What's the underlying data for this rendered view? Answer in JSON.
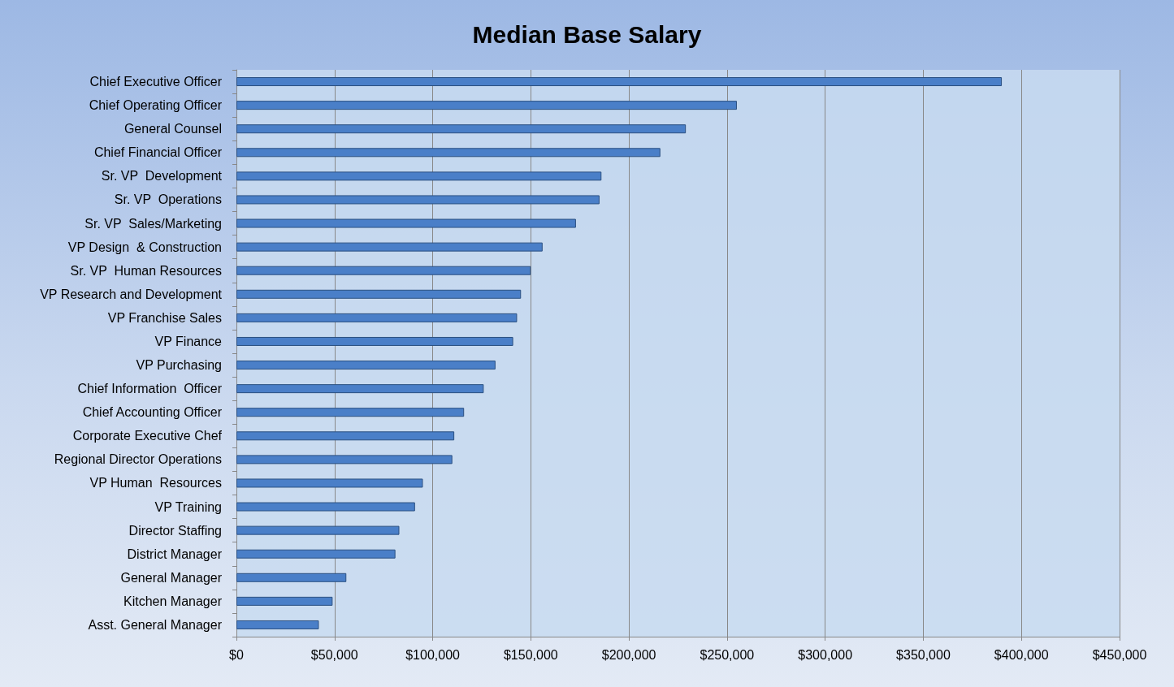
{
  "chart_data": {
    "type": "bar",
    "orientation": "horizontal",
    "title": "Median Base Salary",
    "categories": [
      "Chief Executive Officer",
      "Chief Operating Officer",
      "General Counsel",
      "Chief Financial Officer",
      "Sr. VP  Development",
      "Sr. VP  Operations",
      "Sr. VP  Sales/Marketing",
      "VP Design  & Construction",
      "Sr. VP  Human Resources",
      "VP Research and Development",
      "VP Franchise Sales",
      "VP Finance",
      "VP Purchasing",
      "Chief Information  Officer",
      "Chief Accounting Officer",
      "Corporate Executive Chef",
      "Regional Director Operations",
      "VP Human  Resources",
      "VP Training",
      "Director Staffing",
      "District Manager",
      "General Manager",
      "Kitchen Manager",
      "Asst. General Manager"
    ],
    "values": [
      390000,
      255000,
      229000,
      216000,
      186000,
      185000,
      173000,
      156000,
      150000,
      145000,
      143000,
      141000,
      132000,
      126000,
      116000,
      111000,
      110000,
      95000,
      91000,
      83000,
      81000,
      56000,
      49000,
      42000
    ],
    "color": "#4a7fc8",
    "xlim": [
      0,
      450000
    ],
    "xticks": [
      {
        "value": 0,
        "label": "$0"
      },
      {
        "value": 50000,
        "label": "$50,000"
      },
      {
        "value": 100000,
        "label": "$100,000"
      },
      {
        "value": 150000,
        "label": "$150,000"
      },
      {
        "value": 200000,
        "label": "$200,000"
      },
      {
        "value": 250000,
        "label": "$250,000"
      },
      {
        "value": 300000,
        "label": "$300,000"
      },
      {
        "value": 350000,
        "label": "$350,000"
      },
      {
        "value": 400000,
        "label": "$400,000"
      },
      {
        "value": 450000,
        "label": "$450,000"
      }
    ],
    "grid": "x"
  }
}
